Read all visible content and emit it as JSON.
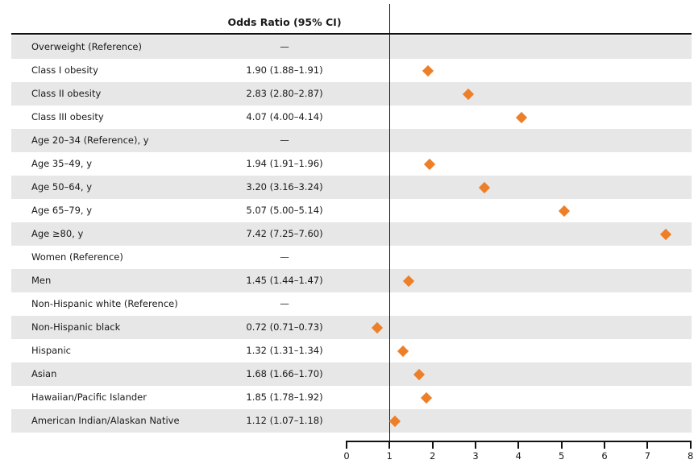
{
  "chart_data": {
    "type": "forest",
    "column_header": "Odds Ratio (95% CI)",
    "xlabel": "",
    "ylabel": "",
    "xlim": [
      0,
      8
    ],
    "x_ticks": [
      0,
      1,
      2,
      3,
      4,
      5,
      6,
      7,
      8
    ],
    "reference_line_x": 1,
    "grid": false,
    "legend": "none",
    "marker": "diamond",
    "marker_color": "#ee7f29",
    "band_color": "#e7e7e7",
    "axis_color": "#111111",
    "reference_dash": "—",
    "rows": [
      {
        "label": "Overweight (Reference)",
        "or_text": "—",
        "value": null,
        "ci": null
      },
      {
        "label": "Class I obesity",
        "or_text": "1.90 (1.88–1.91)",
        "value": 1.9,
        "ci": [
          1.88,
          1.91
        ]
      },
      {
        "label": "Class II obesity",
        "or_text": "2.83 (2.80–2.87)",
        "value": 2.83,
        "ci": [
          2.8,
          2.87
        ]
      },
      {
        "label": "Class III obesity",
        "or_text": "4.07 (4.00–4.14)",
        "value": 4.07,
        "ci": [
          4.0,
          4.14
        ]
      },
      {
        "label": "Age 20–34 (Reference), y",
        "or_text": "—",
        "value": null,
        "ci": null
      },
      {
        "label": "Age 35–49, y",
        "or_text": "1.94 (1.91–1.96)",
        "value": 1.94,
        "ci": [
          1.91,
          1.96
        ]
      },
      {
        "label": "Age 50–64, y",
        "or_text": "3.20 (3.16–3.24)",
        "value": 3.2,
        "ci": [
          3.16,
          3.24
        ]
      },
      {
        "label": "Age 65–79, y",
        "or_text": "5.07 (5.00–5.14)",
        "value": 5.07,
        "ci": [
          5.0,
          5.14
        ]
      },
      {
        "label": "Age ≥80, y",
        "or_text": "7.42 (7.25–7.60)",
        "value": 7.42,
        "ci": [
          7.25,
          7.6
        ]
      },
      {
        "label": "Women (Reference)",
        "or_text": "—",
        "value": null,
        "ci": null
      },
      {
        "label": "Men",
        "or_text": "1.45 (1.44–1.47)",
        "value": 1.45,
        "ci": [
          1.44,
          1.47
        ]
      },
      {
        "label": "Non-Hispanic white (Reference)",
        "or_text": "—",
        "value": null,
        "ci": null
      },
      {
        "label": "Non-Hispanic black",
        "or_text": "0.72 (0.71–0.73)",
        "value": 0.72,
        "ci": [
          0.71,
          0.73
        ]
      },
      {
        "label": "Hispanic",
        "or_text": "1.32 (1.31–1.34)",
        "value": 1.32,
        "ci": [
          1.31,
          1.34
        ]
      },
      {
        "label": "Asian",
        "or_text": "1.68 (1.66–1.70)",
        "value": 1.68,
        "ci": [
          1.66,
          1.7
        ]
      },
      {
        "label": "Hawaiian/Pacific Islander",
        "or_text": "1.85 (1.78–1.92)",
        "value": 1.85,
        "ci": [
          1.78,
          1.92
        ]
      },
      {
        "label": "American Indian/Alaskan Native",
        "or_text": "1.12 (1.07–1.18)",
        "value": 1.12,
        "ci": [
          1.07,
          1.18
        ]
      }
    ]
  }
}
